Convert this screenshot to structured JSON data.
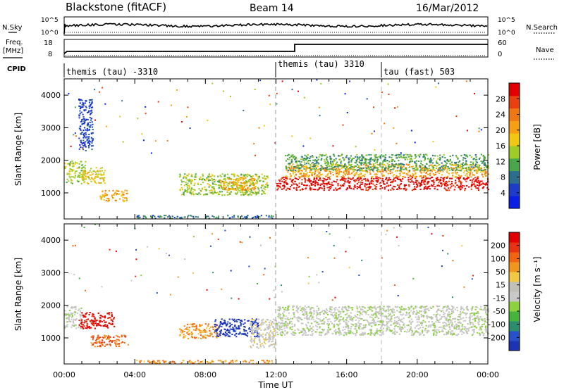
{
  "header": {
    "station": "Blackstone (fitACF)",
    "beam": "Beam 14",
    "date": "16/Mar/2012"
  },
  "strip_labels": {
    "nsky": "N.Sky",
    "freq": "Freq.",
    "mhz": "[MHz]",
    "cpid": "CPID",
    "nsearch": "N.Search",
    "nave": "Nave",
    "noise_ticks": [
      "10^5",
      "10^0"
    ],
    "freq_ticks": [
      "18",
      "8"
    ],
    "nave_ticks": [
      "60",
      "0"
    ]
  },
  "cpid_modes": [
    {
      "label": "themis (tau) -3310",
      "start_hour": 0
    },
    {
      "label": "themis (tau) 3310",
      "start_hour": 12
    },
    {
      "label": "tau (fast) 503",
      "start_hour": 18
    }
  ],
  "chart_data": [
    {
      "type": "heatmap",
      "name": "power-panel",
      "ylabel": "Slant Range [km]",
      "xlabel": "Time UT",
      "xlim_hours": [
        0,
        24
      ],
      "ylim_km": [
        200,
        4500
      ],
      "yticks": [
        "1000",
        "2000",
        "3000",
        "4000"
      ],
      "xticks": [
        "00:00",
        "04:00",
        "08:00",
        "12:00",
        "16:00",
        "20:00",
        "00:00"
      ],
      "colorbar": {
        "label": "Power [dB]",
        "ticks": [
          "4",
          "8",
          "12",
          "16",
          "20",
          "24",
          "28"
        ],
        "colors": [
          "#0a1ee6",
          "#1e3cc8",
          "#2c6e8c",
          "#4aa64a",
          "#9ccc28",
          "#f0c814",
          "#f5a014",
          "#f07814",
          "#e84010",
          "#e00000"
        ]
      },
      "scatter_regions": [
        {
          "t0": 0.0,
          "t1": 1.2,
          "r0": 1300,
          "r1": 2000,
          "level": 4
        },
        {
          "t0": 0.8,
          "t1": 1.6,
          "r0": 2300,
          "r1": 3900,
          "level": 1
        },
        {
          "t0": 1.0,
          "t1": 2.3,
          "r0": 1300,
          "r1": 1800,
          "level": 5
        },
        {
          "t0": 2.0,
          "t1": 3.6,
          "r0": 750,
          "r1": 1100,
          "level": 6
        },
        {
          "t0": 6.5,
          "t1": 11.5,
          "r0": 950,
          "r1": 1600,
          "level": 4
        },
        {
          "t0": 8.8,
          "t1": 10.8,
          "r0": 1100,
          "r1": 1500,
          "level": 6
        },
        {
          "t0": 12.0,
          "t1": 24.0,
          "r0": 1100,
          "r1": 1500,
          "level": 9
        },
        {
          "t0": 12.5,
          "t1": 24.0,
          "r0": 1500,
          "r1": 1900,
          "level": 6
        },
        {
          "t0": 12.5,
          "t1": 24.0,
          "r0": 1700,
          "r1": 2200,
          "level": 3
        },
        {
          "t0": 4.0,
          "t1": 11.8,
          "r0": 230,
          "r1": 330,
          "level": 2
        }
      ]
    },
    {
      "type": "heatmap",
      "name": "velocity-panel",
      "ylabel": "Slant Range [km]",
      "xlabel": "Time UT",
      "xlim_hours": [
        0,
        24
      ],
      "ylim_km": [
        200,
        4500
      ],
      "yticks": [
        "1000",
        "2000",
        "3000",
        "4000"
      ],
      "xticks": [
        "00:00",
        "04:00",
        "08:00",
        "12:00",
        "16:00",
        "20:00",
        "00:00"
      ],
      "colorbar": {
        "label": "Velocity [m s⁻¹]",
        "ticks": [
          "200",
          "100",
          "50",
          "15",
          "-15",
          "-50",
          "-100",
          "-200"
        ],
        "colors": [
          "#1e32b4",
          "#2850c8",
          "#2c8c6e",
          "#46b43c",
          "#8cd23c",
          "#c8c8c8",
          "#c0c0b8",
          "#f0c846",
          "#f0961e",
          "#f06414",
          "#e83214",
          "#e00000"
        ]
      },
      "scatter_regions": [
        {
          "t0": 0.0,
          "t1": 1.0,
          "r0": 1300,
          "r1": 2000,
          "level": 5
        },
        {
          "t0": 0.8,
          "t1": 2.8,
          "r0": 1300,
          "r1": 1800,
          "level": 11
        },
        {
          "t0": 1.5,
          "t1": 3.6,
          "r0": 750,
          "r1": 1100,
          "level": 9
        },
        {
          "t0": 6.5,
          "t1": 8.8,
          "r0": 1000,
          "r1": 1450,
          "level": 8
        },
        {
          "t0": 8.5,
          "t1": 11.0,
          "r0": 1050,
          "r1": 1600,
          "level": 0
        },
        {
          "t0": 10.5,
          "t1": 12.0,
          "r0": 700,
          "r1": 1600,
          "level": 6
        },
        {
          "t0": 12.0,
          "t1": 24.0,
          "r0": 1100,
          "r1": 2000,
          "level": 5
        },
        {
          "t0": 4.0,
          "t1": 11.8,
          "r0": 230,
          "r1": 330,
          "level": 8
        }
      ]
    }
  ]
}
